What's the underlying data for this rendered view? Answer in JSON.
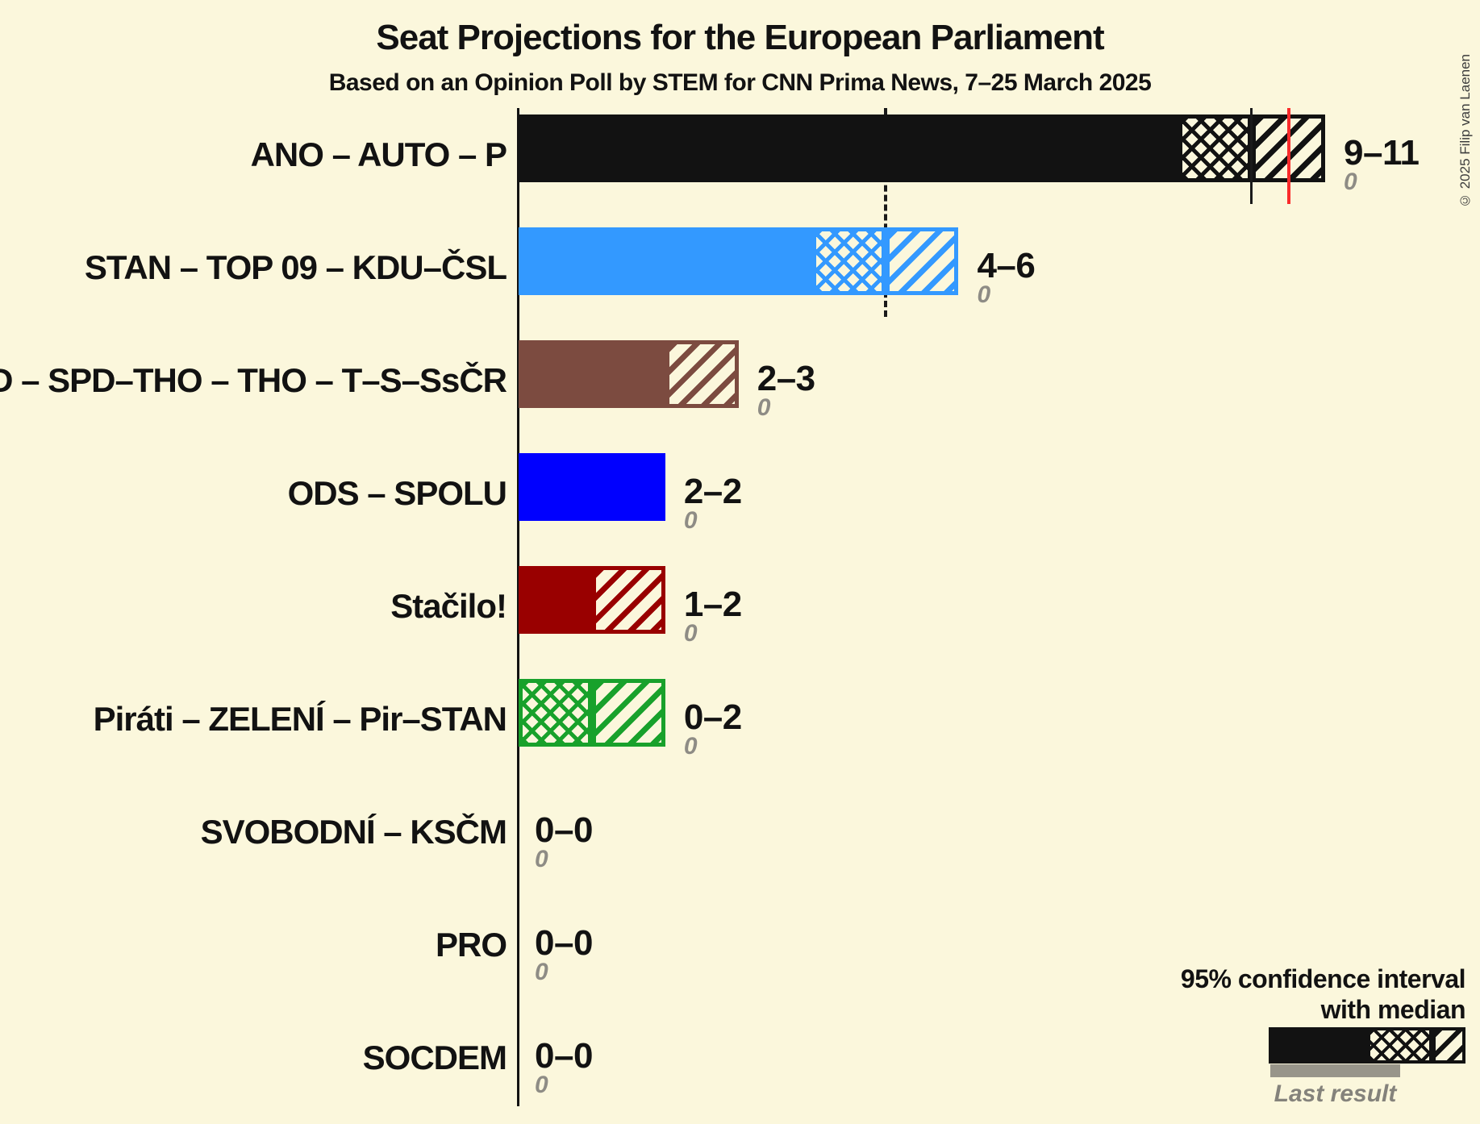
{
  "title": "Seat Projections for the European Parliament",
  "subtitle": "Based on an Opinion Poll by STEM for CNN Prima News, 7–25 March 2025",
  "copyright": "© 2025 Filip van Laenen",
  "legend": {
    "ci_label_line1": "95% confidence interval",
    "ci_label_line2": "with median",
    "last_result_label": "Last result"
  },
  "chart_data": {
    "type": "bar",
    "orientation": "horizontal",
    "x_unit": "seats",
    "xlim": [
      0,
      13
    ],
    "grid": false,
    "majority_seats": 10.5,
    "parties": [
      {
        "label": "ANO – AUTO – P",
        "ci_low": 9,
        "median": 10,
        "ci_high": 11,
        "range_label": "9–11",
        "last_result": "0",
        "color": "#121212"
      },
      {
        "label": "STAN – TOP 09 – KDU–ČSL",
        "ci_low": 4,
        "median": 5,
        "ci_high": 6,
        "range_label": "4–6",
        "last_result": "0",
        "color": "#3399FF"
      },
      {
        "label": "SPD – SPD–THO – THO – T–S–SsČR",
        "ci_low": 2,
        "median": 2,
        "ci_high": 3,
        "range_label": "2–3",
        "last_result": "0",
        "color": "#7C4B40"
      },
      {
        "label": "ODS – SPOLU",
        "ci_low": 2,
        "median": 2,
        "ci_high": 2,
        "range_label": "2–2",
        "last_result": "0",
        "color": "#0000FF"
      },
      {
        "label": "Stačilo!",
        "ci_low": 1,
        "median": 1,
        "ci_high": 2,
        "range_label": "1–2",
        "last_result": "0",
        "color": "#990000"
      },
      {
        "label": "Piráti – ZELENÍ – Pir–STAN",
        "ci_low": 0,
        "median": 1,
        "ci_high": 2,
        "range_label": "0–2",
        "last_result": "0",
        "color": "#18A12B"
      },
      {
        "label": "SVOBODNÍ – KSČM",
        "ci_low": 0,
        "median": 0,
        "ci_high": 0,
        "range_label": "0–0",
        "last_result": "0",
        "color": "#121212"
      },
      {
        "label": "PRO",
        "ci_low": 0,
        "median": 0,
        "ci_high": 0,
        "range_label": "0–0",
        "last_result": "0",
        "color": "#121212"
      },
      {
        "label": "SOCDEM",
        "ci_low": 0,
        "median": 0,
        "ci_high": 0,
        "range_label": "0–0",
        "last_result": "0",
        "color": "#121212"
      }
    ],
    "overlays": [
      {
        "name": "stan-median-line",
        "seats": 5,
        "style": "dashed",
        "color": "#1A1A1A",
        "lane_to": 1
      },
      {
        "name": "ano-median-line",
        "seats": 10,
        "style": "solid",
        "color": "#1A1A1A",
        "lane_to": 0
      },
      {
        "name": "majority-line",
        "seats": 10.5,
        "style": "red",
        "color": "#FA2B2B",
        "lane_to": 0
      }
    ]
  }
}
